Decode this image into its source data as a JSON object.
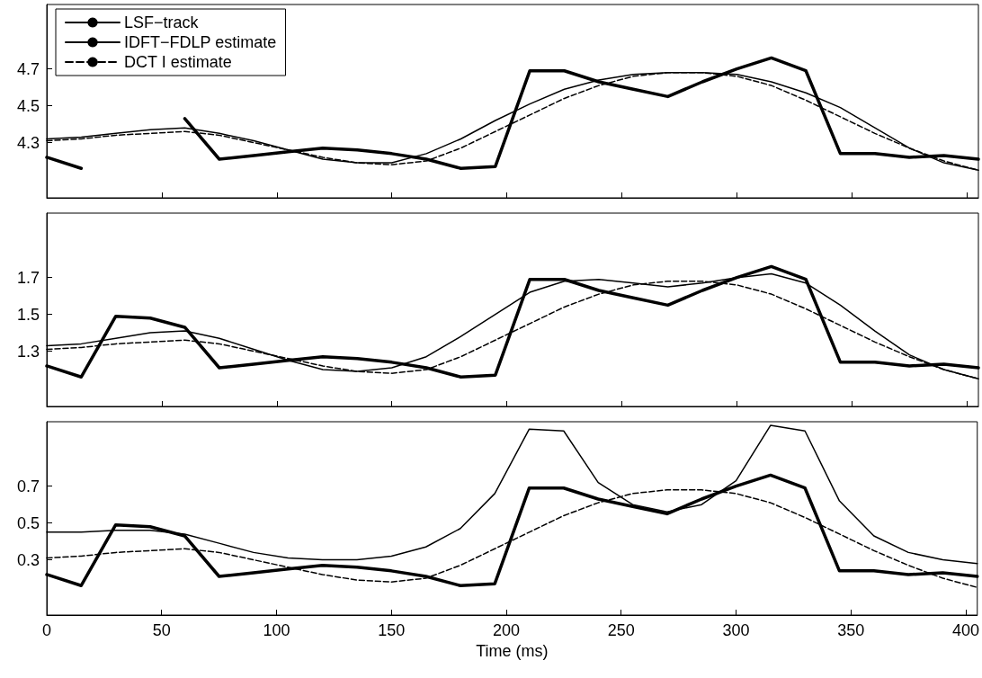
{
  "chart_data": [
    {
      "type": "line",
      "x": [
        0,
        15,
        30,
        45,
        60,
        75,
        90,
        105,
        120,
        135,
        150,
        165,
        180,
        195,
        210,
        225,
        240,
        255,
        270,
        285,
        300,
        315,
        330,
        345,
        360,
        375,
        390,
        405
      ],
      "xlim": [
        0,
        405
      ],
      "xticks": [
        0,
        50,
        100,
        150,
        200,
        250,
        300,
        350,
        400
      ],
      "ylim": [
        4.0,
        5.05
      ],
      "yticks": [
        4.3,
        4.5,
        4.7
      ],
      "tick_labels": "y",
      "grid": false,
      "legend": "top left",
      "marker": "none",
      "series": [
        {
          "name": "LSF−track",
          "color": "#000000",
          "line_style": "solid",
          "values": [
            4.22,
            4.16,
            null,
            null,
            4.43,
            4.21,
            4.23,
            4.25,
            4.27,
            4.26,
            4.24,
            4.21,
            4.16,
            4.17,
            4.69,
            4.69,
            4.63,
            4.59,
            4.55,
            4.63,
            4.7,
            4.76,
            4.69,
            4.24,
            4.24,
            4.22,
            4.23,
            4.21
          ]
        },
        {
          "name": "IDFT−FDLP estimate",
          "color": "#000000",
          "line_style": "solid",
          "values": [
            4.32,
            4.33,
            4.35,
            4.37,
            4.38,
            4.35,
            4.31,
            4.26,
            4.21,
            4.19,
            4.19,
            4.24,
            4.32,
            4.42,
            4.51,
            4.59,
            4.64,
            4.67,
            4.68,
            4.68,
            4.67,
            4.63,
            4.57,
            4.49,
            4.38,
            4.27,
            4.19,
            4.15
          ]
        },
        {
          "name": "DCT I estimate",
          "color": "#000000",
          "line_style": "dashed",
          "values": [
            4.31,
            4.32,
            4.34,
            4.35,
            4.36,
            4.34,
            4.3,
            4.26,
            4.22,
            4.19,
            4.18,
            4.2,
            4.27,
            4.36,
            4.45,
            4.54,
            4.61,
            4.66,
            4.68,
            4.68,
            4.66,
            4.61,
            4.53,
            4.44,
            4.35,
            4.27,
            4.2,
            4.15
          ]
        }
      ]
    },
    {
      "type": "line",
      "x": [
        0,
        15,
        30,
        45,
        60,
        75,
        90,
        105,
        120,
        135,
        150,
        165,
        180,
        195,
        210,
        225,
        240,
        255,
        270,
        285,
        300,
        315,
        330,
        345,
        360,
        375,
        390,
        405
      ],
      "xlim": [
        0,
        405
      ],
      "xticks": [
        0,
        50,
        100,
        150,
        200,
        250,
        300,
        350,
        400
      ],
      "ylim": [
        1.0,
        2.05
      ],
      "yticks": [
        1.3,
        1.5,
        1.7
      ],
      "tick_labels": "y",
      "grid": false,
      "marker": "none",
      "series": [
        {
          "color": "#000000",
          "line_style": "solid",
          "values": [
            1.22,
            1.16,
            1.49,
            1.48,
            1.43,
            1.21,
            1.23,
            1.25,
            1.27,
            1.26,
            1.24,
            1.21,
            1.16,
            1.17,
            1.69,
            1.69,
            1.63,
            1.59,
            1.55,
            1.63,
            1.7,
            1.76,
            1.69,
            1.24,
            1.24,
            1.22,
            1.23,
            1.21
          ]
        },
        {
          "color": "#000000",
          "line_style": "solid",
          "values": [
            1.33,
            1.34,
            1.37,
            1.4,
            1.41,
            1.37,
            1.31,
            1.25,
            1.2,
            1.19,
            1.21,
            1.27,
            1.38,
            1.5,
            1.62,
            1.68,
            1.69,
            1.67,
            1.65,
            1.67,
            1.7,
            1.72,
            1.67,
            1.55,
            1.41,
            1.28,
            1.2,
            1.15
          ]
        },
        {
          "color": "#000000",
          "line_style": "dashed",
          "values": [
            1.31,
            1.32,
            1.34,
            1.35,
            1.36,
            1.34,
            1.3,
            1.26,
            1.22,
            1.19,
            1.18,
            1.2,
            1.27,
            1.36,
            1.45,
            1.54,
            1.61,
            1.66,
            1.68,
            1.68,
            1.66,
            1.61,
            1.53,
            1.44,
            1.35,
            1.27,
            1.2,
            1.15
          ]
        }
      ]
    },
    {
      "type": "line",
      "x": [
        0,
        15,
        30,
        45,
        60,
        75,
        90,
        105,
        120,
        135,
        150,
        165,
        180,
        195,
        210,
        225,
        240,
        255,
        270,
        285,
        300,
        315,
        330,
        345,
        360,
        375,
        390,
        405
      ],
      "xlim": [
        0,
        405
      ],
      "xticks": [
        0,
        50,
        100,
        150,
        200,
        250,
        300,
        350,
        400
      ],
      "ylim": [
        0,
        1.05
      ],
      "yticks": [
        0.3,
        0.5,
        0.7
      ],
      "xlabel": "Time (ms)",
      "grid": false,
      "marker": "none",
      "series": [
        {
          "color": "#000000",
          "line_style": "solid",
          "values": [
            0.22,
            0.16,
            0.49,
            0.48,
            0.43,
            0.21,
            0.23,
            0.25,
            0.27,
            0.26,
            0.24,
            0.21,
            0.16,
            0.17,
            0.69,
            0.69,
            0.63,
            0.59,
            0.55,
            0.63,
            0.7,
            0.76,
            0.69,
            0.24,
            0.24,
            0.22,
            0.23,
            0.21
          ]
        },
        {
          "color": "#000000",
          "line_style": "solid",
          "values": [
            0.45,
            0.45,
            0.46,
            0.46,
            0.44,
            0.39,
            0.34,
            0.31,
            0.3,
            0.3,
            0.32,
            0.37,
            0.47,
            0.66,
            1.01,
            1.0,
            0.72,
            0.6,
            0.56,
            0.6,
            0.73,
            1.03,
            1.0,
            0.62,
            0.43,
            0.34,
            0.3,
            0.28
          ]
        },
        {
          "color": "#000000",
          "line_style": "dashed",
          "values": [
            0.31,
            0.32,
            0.34,
            0.35,
            0.36,
            0.34,
            0.3,
            0.26,
            0.22,
            0.19,
            0.18,
            0.2,
            0.27,
            0.36,
            0.45,
            0.54,
            0.61,
            0.66,
            0.68,
            0.68,
            0.66,
            0.61,
            0.53,
            0.44,
            0.35,
            0.27,
            0.2,
            0.15
          ]
        }
      ]
    }
  ]
}
